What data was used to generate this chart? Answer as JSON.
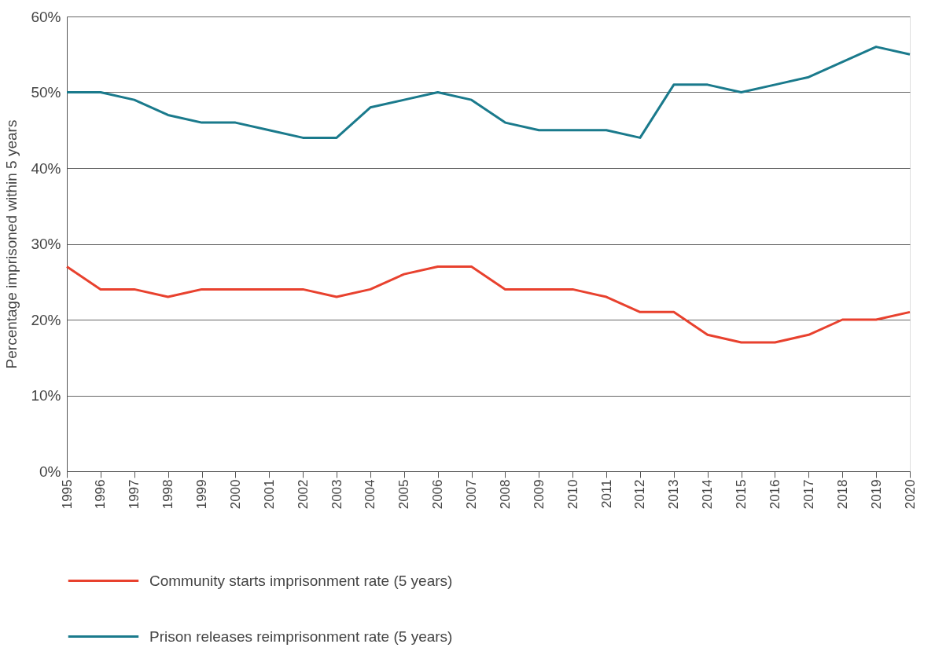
{
  "chart_data": {
    "type": "line",
    "ylabel": "Percentage imprisoned within 5 years",
    "x": [
      1995,
      1996,
      1997,
      1998,
      1999,
      2000,
      2001,
      2002,
      2003,
      2004,
      2005,
      2006,
      2007,
      2008,
      2009,
      2010,
      2011,
      2012,
      2013,
      2014,
      2015,
      2016,
      2017,
      2018,
      2019,
      2020
    ],
    "xlim": [
      1995,
      2020
    ],
    "xticks": [
      1995,
      1996,
      1997,
      1998,
      1999,
      2000,
      2001,
      2002,
      2003,
      2004,
      2005,
      2006,
      2007,
      2008,
      2009,
      2010,
      2011,
      2012,
      2013,
      2014,
      2015,
      2016,
      2017,
      2018,
      2019,
      2020
    ],
    "ylim": [
      0,
      60
    ],
    "yticks": [
      {
        "value": 0,
        "label": "0%"
      },
      {
        "value": 10,
        "label": "10%"
      },
      {
        "value": 20,
        "label": "20%"
      },
      {
        "value": 30,
        "label": "30%"
      },
      {
        "value": 40,
        "label": "40%"
      },
      {
        "value": 50,
        "label": "50%"
      },
      {
        "value": 60,
        "label": "60%"
      }
    ],
    "series": [
      {
        "name": "Community starts imprisonment rate (5 years)",
        "color": "#e8412e",
        "values": [
          27,
          24,
          24,
          23,
          24,
          24,
          24,
          24,
          23,
          24,
          26,
          27,
          27,
          24,
          24,
          24,
          23,
          21,
          21,
          18,
          17,
          17,
          18,
          20,
          20,
          21
        ]
      },
      {
        "name": "Prison releases reimprisonment rate (5 years)",
        "color": "#1a7a8c",
        "values": [
          50,
          50,
          49,
          47,
          46,
          46,
          45,
          44,
          44,
          48,
          49,
          50,
          49,
          46,
          45,
          45,
          45,
          44,
          51,
          51,
          50,
          51,
          52,
          54,
          56,
          55
        ]
      }
    ],
    "grid": "y",
    "legend": "bottom",
    "marker": "none",
    "line_style": "solid"
  }
}
